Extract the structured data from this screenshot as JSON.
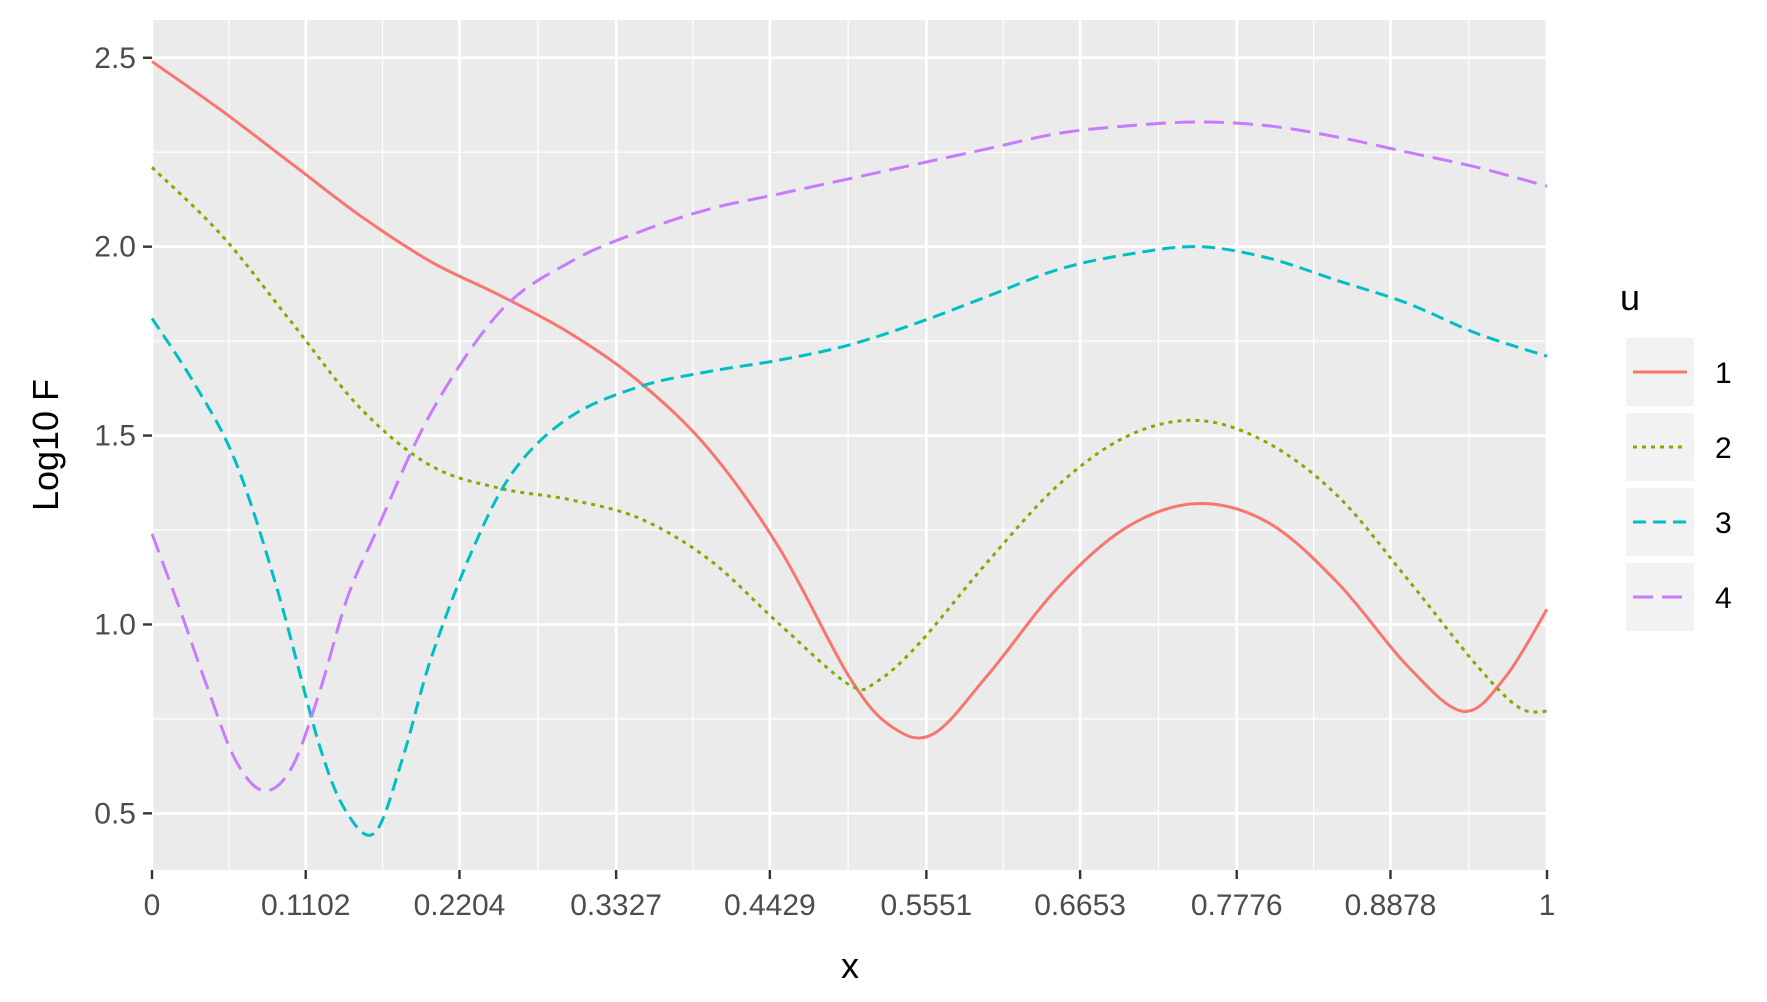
{
  "chart_data": {
    "type": "line",
    "title": "",
    "xlabel": "x",
    "ylabel": "Log10 F",
    "xlim": [
      0,
      1
    ],
    "ylim": [
      0.35,
      2.6
    ],
    "x_ticks": [
      0,
      0.1102,
      0.2204,
      0.3327,
      0.4429,
      0.5551,
      0.6653,
      0.7776,
      0.8878,
      1
    ],
    "x_tick_labels": [
      "0",
      "0.1102",
      "0.2204",
      "0.3327",
      "0.4429",
      "0.5551",
      "0.6653",
      "0.7776",
      "0.8878",
      "1"
    ],
    "y_ticks": [
      0.5,
      1.0,
      1.5,
      2.0,
      2.5
    ],
    "y_tick_labels": [
      "0.5",
      "1.0",
      "1.5",
      "2.0",
      "2.5"
    ],
    "grid": true,
    "panel_background": "#ebebeb",
    "grid_color": "#ffffff",
    "legend": {
      "title": "u",
      "position": "right"
    },
    "series": [
      {
        "name": "1",
        "color": "#F8766D",
        "dash": "solid",
        "x": [
          0,
          0.05,
          0.1,
          0.15,
          0.2,
          0.25,
          0.3,
          0.35,
          0.4,
          0.45,
          0.5,
          0.53,
          0.56,
          0.6,
          0.65,
          0.7,
          0.75,
          0.8,
          0.85,
          0.9,
          0.94,
          0.97,
          1.0
        ],
        "y": [
          2.49,
          2.36,
          2.22,
          2.08,
          1.96,
          1.87,
          1.77,
          1.64,
          1.46,
          1.2,
          0.86,
          0.73,
          0.71,
          0.87,
          1.1,
          1.26,
          1.32,
          1.27,
          1.11,
          0.89,
          0.77,
          0.86,
          1.04
        ]
      },
      {
        "name": "2",
        "color": "#7CAE00",
        "dash": "dotted",
        "x": [
          0,
          0.05,
          0.1,
          0.15,
          0.2,
          0.25,
          0.3,
          0.35,
          0.4,
          0.45,
          0.5,
          0.52,
          0.55,
          0.6,
          0.65,
          0.7,
          0.75,
          0.8,
          0.85,
          0.9,
          0.95,
          0.98,
          1.0
        ],
        "y": [
          2.21,
          2.03,
          1.8,
          1.57,
          1.42,
          1.36,
          1.33,
          1.28,
          1.17,
          1.0,
          0.84,
          0.85,
          0.95,
          1.17,
          1.37,
          1.5,
          1.54,
          1.48,
          1.34,
          1.12,
          0.89,
          0.78,
          0.77
        ]
      },
      {
        "name": "3",
        "color": "#00BFC4",
        "dash": "dashed",
        "x": [
          0,
          0.03,
          0.06,
          0.09,
          0.12,
          0.14,
          0.16,
          0.18,
          0.2,
          0.23,
          0.26,
          0.3,
          0.35,
          0.4,
          0.45,
          0.5,
          0.55,
          0.6,
          0.65,
          0.7,
          0.75,
          0.8,
          0.85,
          0.9,
          0.95,
          1.0
        ],
        "y": [
          1.81,
          1.64,
          1.43,
          1.09,
          0.68,
          0.5,
          0.45,
          0.65,
          0.91,
          1.2,
          1.41,
          1.55,
          1.63,
          1.67,
          1.7,
          1.74,
          1.8,
          1.87,
          1.94,
          1.98,
          2.0,
          1.97,
          1.91,
          1.85,
          1.77,
          1.71
        ]
      },
      {
        "name": "4",
        "color": "#C77CFF",
        "dash": "longdash",
        "x": [
          0,
          0.02,
          0.04,
          0.06,
          0.08,
          0.1,
          0.12,
          0.14,
          0.16,
          0.2,
          0.25,
          0.3,
          0.35,
          0.4,
          0.45,
          0.5,
          0.55,
          0.6,
          0.65,
          0.7,
          0.75,
          0.8,
          0.85,
          0.9,
          0.95,
          1.0
        ],
        "y": [
          1.24,
          1.04,
          0.83,
          0.64,
          0.56,
          0.62,
          0.82,
          1.07,
          1.24,
          1.56,
          1.83,
          1.96,
          2.04,
          2.1,
          2.14,
          2.18,
          2.22,
          2.26,
          2.3,
          2.32,
          2.33,
          2.32,
          2.29,
          2.25,
          2.21,
          2.16
        ]
      }
    ]
  }
}
